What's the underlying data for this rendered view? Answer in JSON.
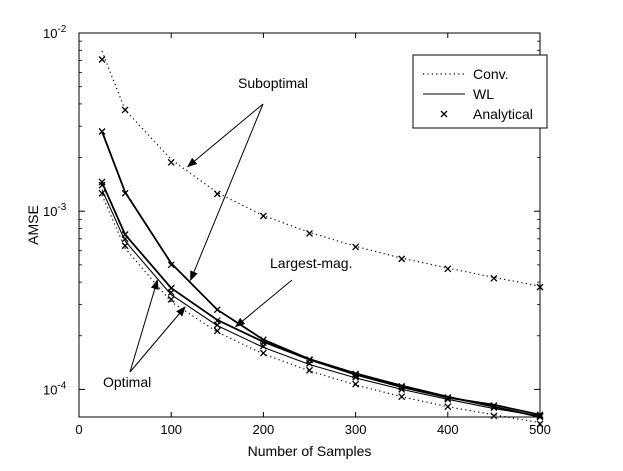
{
  "chart_data": {
    "type": "line",
    "title": "",
    "xlabel": "Number of Samples",
    "ylabel": "AMSE",
    "xlim": [
      0,
      500
    ],
    "ylim": [
      7e-05,
      0.01
    ],
    "yscale": "log",
    "grid": false,
    "x_ticks": [
      0,
      100,
      200,
      300,
      400,
      500
    ],
    "x_tick_labels": [
      "0",
      "100",
      "200",
      "300",
      "400",
      "500"
    ],
    "y_ticks": [
      0.0001,
      0.001,
      0.01
    ],
    "y_tick_labels": [
      {
        "base": "10",
        "exp": "-4"
      },
      {
        "base": "10",
        "exp": "-3"
      },
      {
        "base": "10",
        "exp": "-2"
      }
    ],
    "legend": {
      "placement": "top-right",
      "entries": [
        {
          "label": "Conv.",
          "style": "dotted"
        },
        {
          "label": "WL",
          "style": "solid"
        },
        {
          "label": "Analytical",
          "style": "marker-x"
        }
      ]
    },
    "x": [
      25,
      50,
      100,
      150,
      200,
      250,
      300,
      350,
      400,
      450,
      500
    ],
    "series": [
      {
        "name": "Conv. Suboptimal",
        "style": "dotted",
        "values": [
          0.0079,
          0.0037,
          0.00195,
          0.00127,
          0.000945,
          0.00076,
          0.000635,
          0.000545,
          0.00048,
          0.000425,
          0.00038
        ]
      },
      {
        "name": "Conv. Optimal",
        "style": "dotted",
        "values": [
          0.00123,
          0.00062,
          0.00031,
          0.00021,
          0.000158,
          0.000127,
          0.000106,
          9.1e-05,
          8e-05,
          7.2e-05,
          6.5e-05
        ]
      },
      {
        "name": "WL Suboptimal",
        "style": "solid",
        "values": [
          0.0028,
          0.00128,
          0.00051,
          0.00028,
          0.00019,
          0.000148,
          0.000123,
          0.000105,
          9.1e-05,
          8e-05,
          7e-05
        ]
      },
      {
        "name": "WL Largest-mag.",
        "style": "solid",
        "values": [
          0.00145,
          0.00074,
          0.00037,
          0.000245,
          0.000185,
          0.000147,
          0.000121,
          0.000103,
          9e-05,
          8.2e-05,
          7.2e-05
        ]
      },
      {
        "name": "WL Optimal",
        "style": "solid",
        "values": [
          0.00132,
          0.00068,
          0.00034,
          0.000228,
          0.000172,
          0.000138,
          0.000116,
          0.0001,
          8.8e-05,
          7.8e-05,
          7.1e-05
        ]
      }
    ],
    "analytical_markers": [
      {
        "name": "Conv. Suboptimal",
        "x": [
          25,
          50,
          100,
          150,
          200,
          250,
          300,
          350,
          400,
          450,
          500
        ],
        "values": [
          0.0071,
          0.0037,
          0.00188,
          0.00125,
          0.00094,
          0.00075,
          0.00063,
          0.00054,
          0.000475,
          0.00042,
          0.000375
        ]
      },
      {
        "name": "Conv. Optimal",
        "x": [
          25,
          50,
          100,
          150,
          200,
          250,
          300,
          350,
          400,
          450,
          500
        ],
        "values": [
          0.00126,
          0.00064,
          0.00032,
          0.000213,
          0.00016,
          0.000128,
          0.000107,
          9.1e-05,
          8e-05,
          7.1e-05,
          6.4e-05
        ]
      },
      {
        "name": "WL Suboptimal",
        "x": [
          25,
          50,
          100,
          150,
          200,
          250,
          300,
          350,
          400,
          450,
          500
        ],
        "values": [
          0.0028,
          0.00126,
          0.0005,
          0.00028,
          0.00019,
          0.000147,
          0.000122,
          0.000104,
          9e-05,
          8.1e-05,
          7e-05
        ]
      },
      {
        "name": "WL Largest-mag.",
        "x": [
          25,
          50,
          100,
          150,
          200,
          250,
          300,
          350,
          400,
          450,
          500
        ],
        "values": [
          0.00146,
          0.00074,
          0.00037,
          0.000243,
          0.000183,
          0.000146,
          0.00012,
          0.000103,
          9e-05,
          8.1e-05,
          7.2e-05
        ]
      },
      {
        "name": "WL Optimal",
        "x": [
          25,
          50,
          100,
          150,
          200,
          250,
          300,
          350,
          400,
          450,
          500
        ],
        "values": [
          0.0014,
          0.0007,
          0.00035,
          0.00023,
          0.000175,
          0.00014,
          0.000117,
          0.0001,
          8.8e-05,
          7.9e-05,
          7.1e-05
        ]
      }
    ],
    "annotations": [
      {
        "text": "Suboptimal",
        "arrows_to": [
          {
            "x": 118,
            "y": 0.00178
          },
          {
            "x": 121,
            "y": 0.00041
          }
        ]
      },
      {
        "text": "Largest-mag.",
        "arrows_to": [
          {
            "x": 170,
            "y": 0.000225
          }
        ]
      },
      {
        "text": "Optimal",
        "arrows_to": [
          {
            "x": 85,
            "y": 0.00041
          },
          {
            "x": 115,
            "y": 0.00029
          }
        ]
      }
    ]
  }
}
